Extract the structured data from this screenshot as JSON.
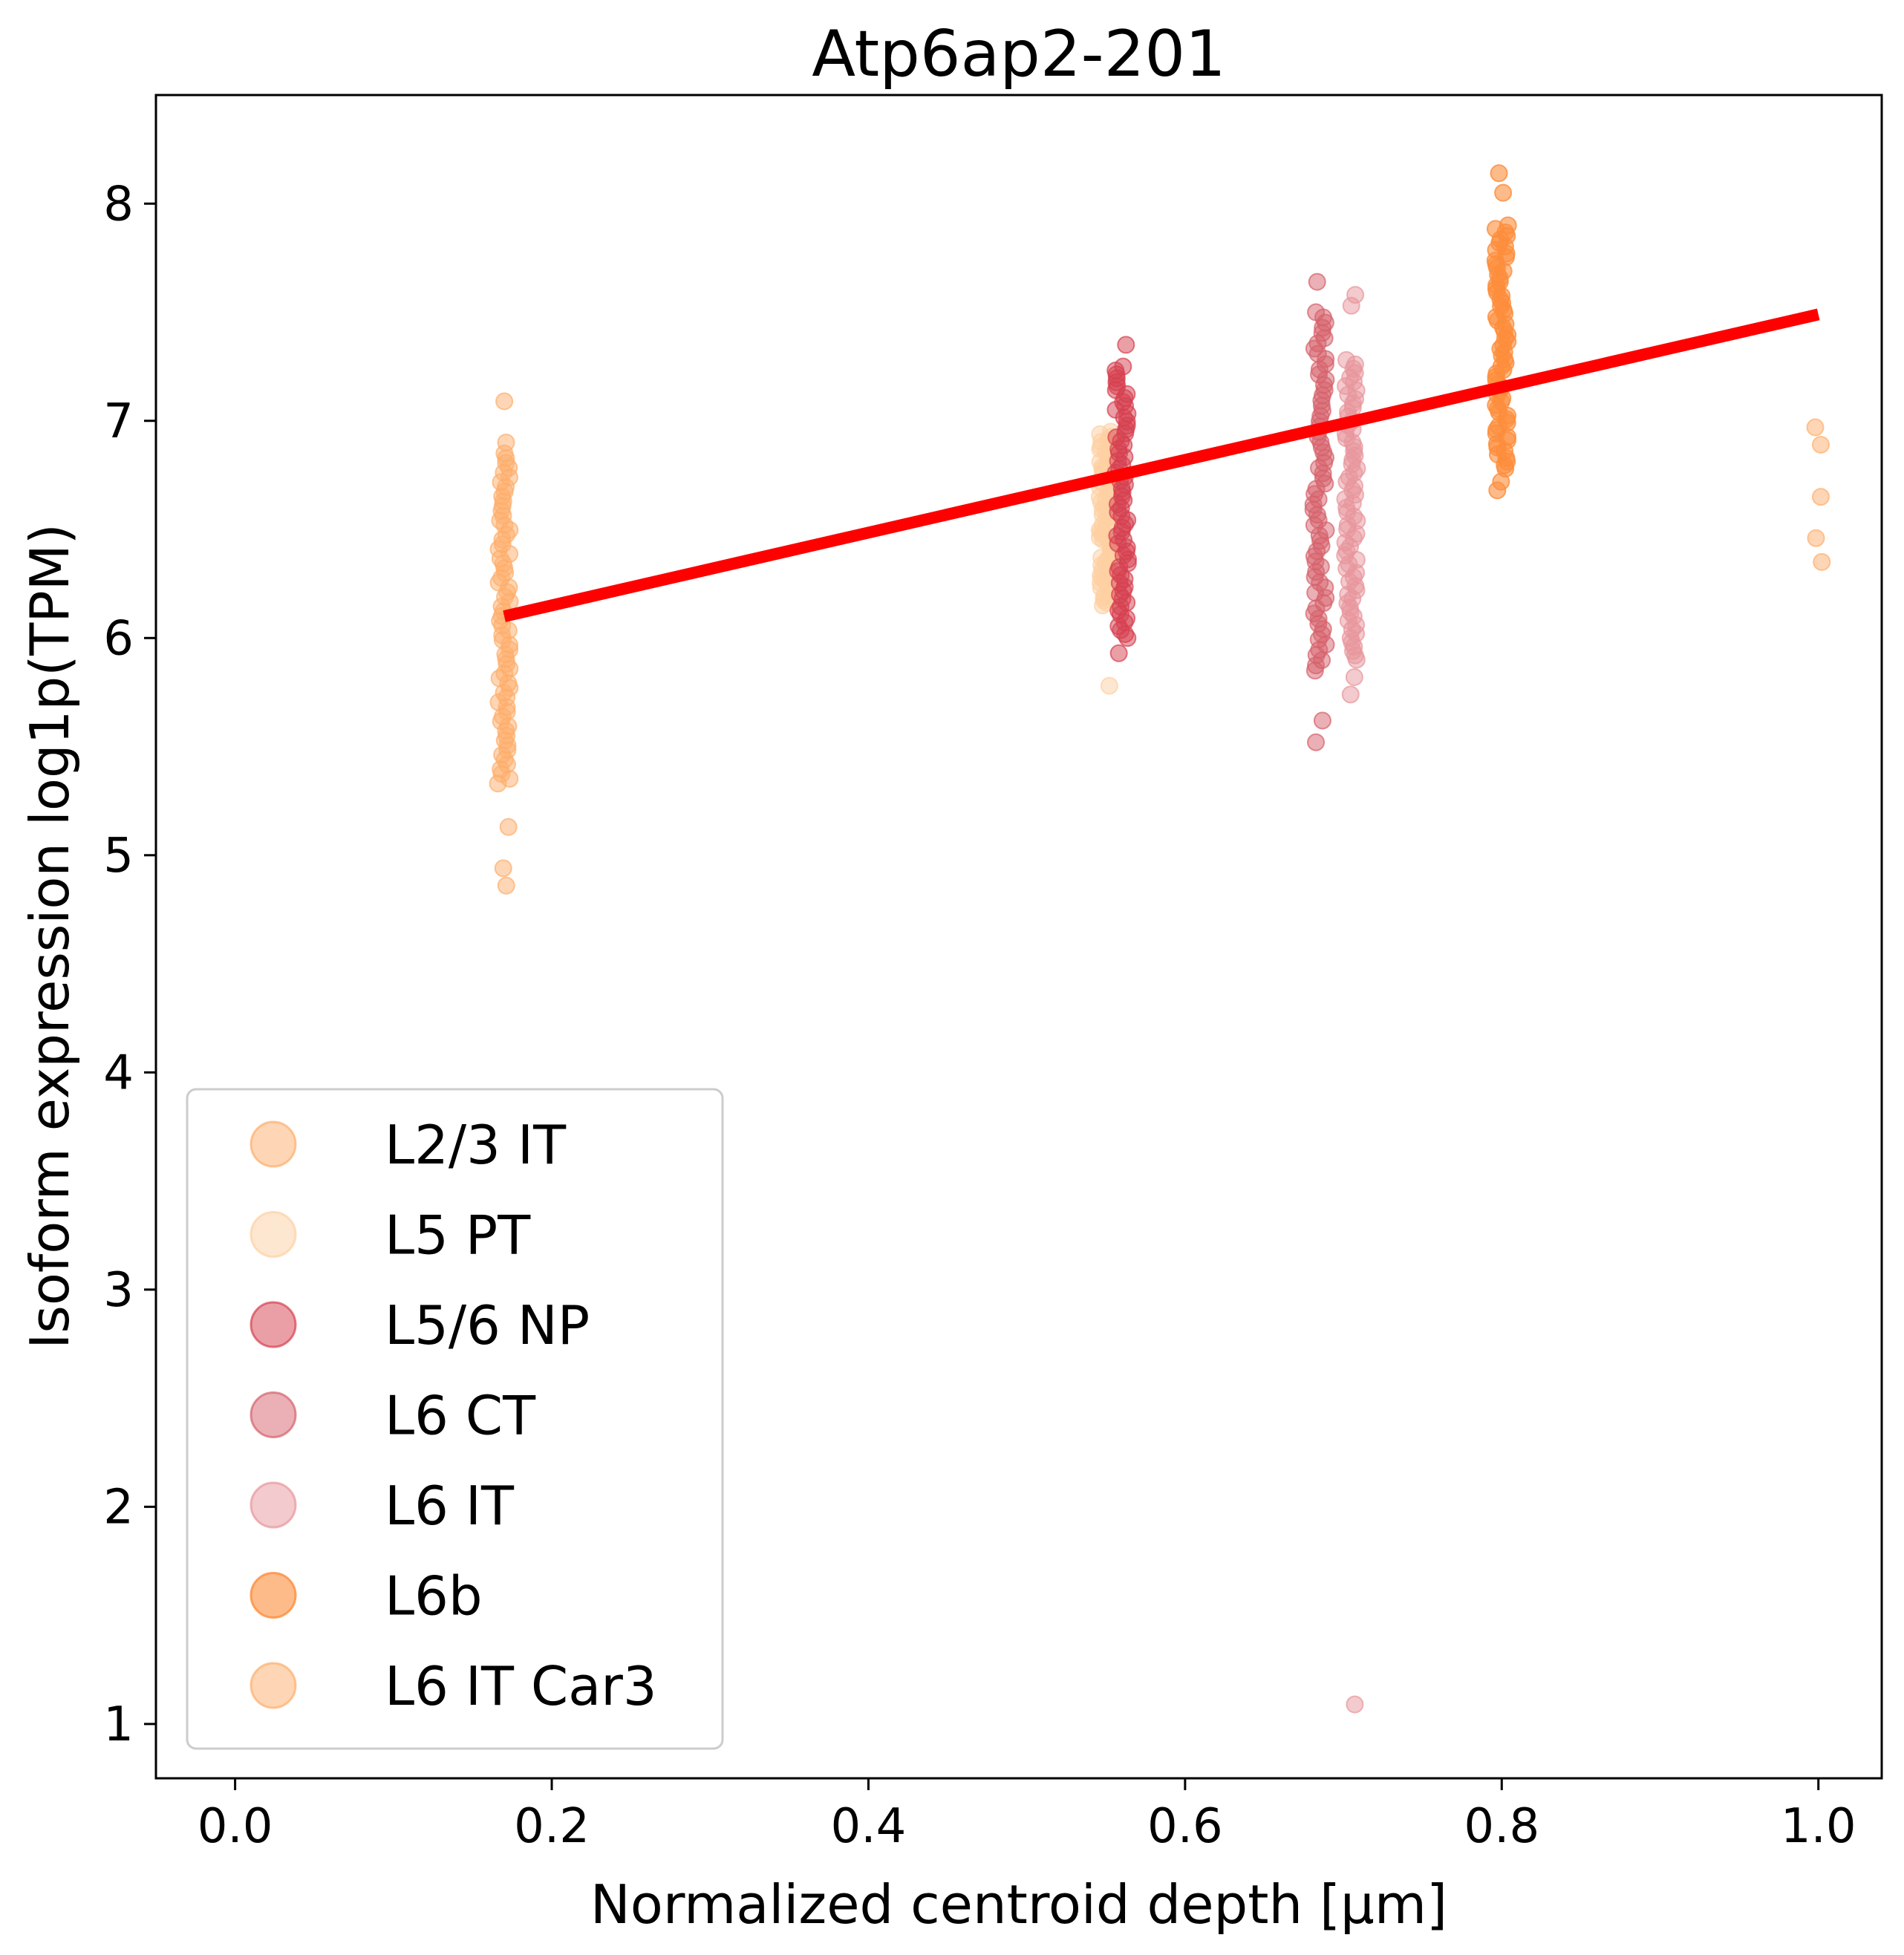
{
  "chart_data": {
    "type": "scatter",
    "title": "Atp6ap2-201",
    "xlabel": "Normalized centroid depth [µm]",
    "ylabel": "Isoform expression log1p(TPM)",
    "xlim": [
      -0.05,
      1.04
    ],
    "ylim": [
      0.75,
      8.5
    ],
    "xticks": [
      0.0,
      0.2,
      0.4,
      0.6,
      0.8,
      1.0
    ],
    "xtick_labels": [
      "0.0",
      "0.2",
      "0.4",
      "0.6",
      "0.8",
      "1.0"
    ],
    "yticks": [
      1,
      2,
      3,
      4,
      5,
      6,
      7,
      8
    ],
    "ytick_labels": [
      "1",
      "2",
      "3",
      "4",
      "5",
      "6",
      "7",
      "8"
    ],
    "grid": false,
    "legend_position": "lower-left",
    "series": [
      {
        "name": "L2/3 IT",
        "color": "#fdae6b",
        "alpha": 0.5,
        "x": 0.17,
        "y_min": 5.33,
        "y_max": 6.85,
        "outliers": [
          7.09,
          6.9,
          5.13,
          4.94,
          4.86
        ]
      },
      {
        "name": "L5 PT",
        "color": "#fdd0a2",
        "alpha": 0.5,
        "x": 0.55,
        "y_min": 6.15,
        "y_max": 6.95,
        "outliers": [
          5.78,
          6.38
        ]
      },
      {
        "name": "L5/6 NP",
        "color": "#d6404f",
        "alpha": 0.5,
        "x": 0.56,
        "y_min": 6.0,
        "y_max": 7.25,
        "outliers": [
          7.35,
          5.93
        ]
      },
      {
        "name": "L6 CT",
        "color": "#d6616b",
        "alpha": 0.5,
        "x": 0.685,
        "y_min": 5.85,
        "y_max": 7.5,
        "outliers": [
          7.64,
          5.62,
          5.52
        ]
      },
      {
        "name": "L6 IT",
        "color": "#e7969c",
        "alpha": 0.5,
        "x": 0.705,
        "y_min": 5.9,
        "y_max": 7.28,
        "outliers": [
          7.58,
          7.53,
          5.82,
          5.74,
          1.09
        ]
      },
      {
        "name": "L6b",
        "color": "#fd8d3c",
        "alpha": 0.6,
        "x": 0.8,
        "y_min": 6.78,
        "y_max": 7.9,
        "outliers": [
          8.14,
          8.05,
          6.72,
          6.68
        ]
      },
      {
        "name": "L6 IT Car3",
        "color": "#fdae6b",
        "alpha": 0.5,
        "x": 1.0,
        "y_min": null,
        "y_max": null,
        "outliers": [
          6.97,
          6.89,
          6.65,
          6.46,
          6.35
        ]
      }
    ],
    "fit_line": {
      "x": [
        0.17,
        1.0
      ],
      "y": [
        6.1,
        7.49
      ],
      "color": "#ff0000"
    }
  }
}
